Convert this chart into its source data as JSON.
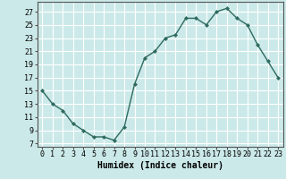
{
  "x": [
    0,
    1,
    2,
    3,
    4,
    5,
    6,
    7,
    8,
    9,
    10,
    11,
    12,
    13,
    14,
    15,
    16,
    17,
    18,
    19,
    20,
    21,
    22,
    23
  ],
  "y": [
    15,
    13,
    12,
    10,
    9,
    8,
    8,
    7.5,
    9.5,
    16,
    20,
    21,
    23,
    23.5,
    26,
    26,
    25,
    27,
    27.5,
    26,
    25,
    22,
    19.5,
    17
  ],
  "line_color": "#2e6b5e",
  "marker": "D",
  "marker_size": 2.0,
  "bg_color": "#cce9e9",
  "grid_color": "#ffffff",
  "xlabel": "Humidex (Indice chaleur)",
  "xlabel_fontsize": 7,
  "ylabel_ticks": [
    7,
    9,
    11,
    13,
    15,
    17,
    19,
    21,
    23,
    25,
    27
  ],
  "ylim": [
    6.5,
    28.5
  ],
  "xlim": [
    -0.5,
    23.5
  ],
  "xtick_labels": [
    "0",
    "1",
    "2",
    "3",
    "4",
    "5",
    "6",
    "7",
    "8",
    "9",
    "10",
    "11",
    "12",
    "13",
    "14",
    "15",
    "16",
    "17",
    "18",
    "19",
    "20",
    "21",
    "22",
    "23"
  ],
  "tick_fontsize": 6,
  "line_width": 1.0
}
